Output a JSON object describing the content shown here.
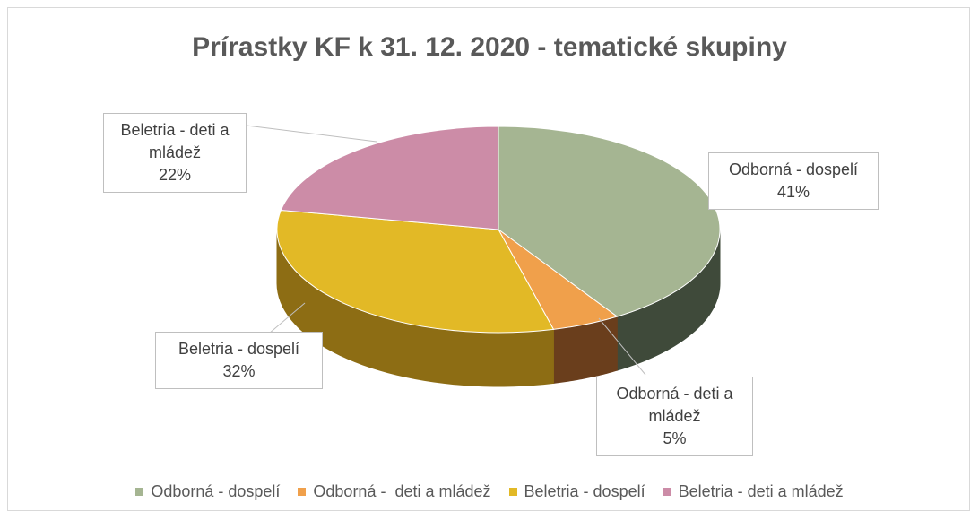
{
  "chart_data": {
    "type": "pie",
    "title": "Prírastky KF k 31. 12. 2020 - tematické skupiny",
    "categories": [
      "Odborná - dospelí",
      "Odborná -  deti a mládež",
      "Beletria - dospelí",
      "Beletria - deti a mládež"
    ],
    "values": [
      41,
      5,
      32,
      22
    ],
    "value_labels": [
      "41%",
      "5%",
      "32%",
      "22%"
    ],
    "colors": [
      "#a5b592",
      "#f0a04b",
      "#e2b926",
      "#cc8ca7"
    ],
    "side_colors": [
      "#3f4a3a",
      "#6a3e1c",
      "#8d6d14",
      "#7a4f62"
    ],
    "legend": "bottom"
  }
}
